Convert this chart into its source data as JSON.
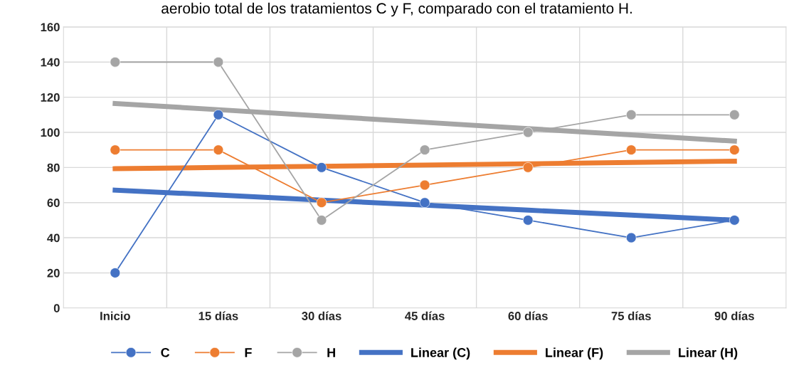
{
  "chart_data": {
    "type": "line",
    "title": "aerobio total de los tratamientos C y F, comparado con el tratamiento H.",
    "categories": [
      "Inicio",
      "15 días",
      "30 días",
      "45 días",
      "60 días",
      "75 días",
      "90 días"
    ],
    "series": [
      {
        "name": "C",
        "color": "#4472c4",
        "values": [
          20,
          110,
          80,
          60,
          50,
          40,
          50
        ]
      },
      {
        "name": "F",
        "color": "#ed7d31",
        "values": [
          90,
          90,
          60,
          70,
          80,
          90,
          90
        ]
      },
      {
        "name": "H",
        "color": "#a5a5a5",
        "values": [
          140,
          140,
          50,
          90,
          100,
          110,
          110
        ]
      },
      {
        "name": "Linear (C)",
        "color": "#4472c4",
        "marker": "none",
        "values": [
          67.1,
          64.3,
          61.4,
          58.6,
          55.7,
          52.9,
          50.0
        ]
      },
      {
        "name": "Linear (F)",
        "color": "#ed7d31",
        "marker": "none",
        "values": [
          79.3,
          80.0,
          80.7,
          81.4,
          82.1,
          82.9,
          83.6
        ]
      },
      {
        "name": "Linear (H)",
        "color": "#a5a5a5",
        "marker": "none",
        "values": [
          116.4,
          112.9,
          109.3,
          105.7,
          102.1,
          98.6,
          95.0
        ]
      }
    ],
    "ylim": [
      0,
      160
    ],
    "yticks": [
      0,
      20,
      40,
      60,
      80,
      100,
      120,
      140,
      160
    ],
    "grid": true,
    "legend": "bottom",
    "marker": "circle",
    "line_style": "solid"
  }
}
